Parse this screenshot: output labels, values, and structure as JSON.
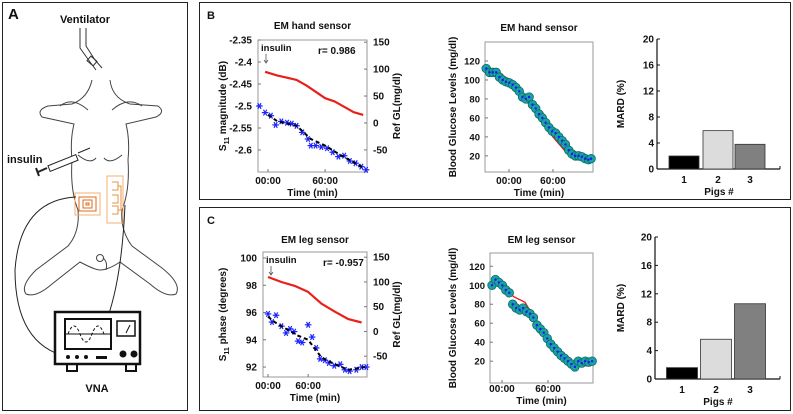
{
  "panels": {
    "a": "A",
    "b": "B",
    "c": "C"
  },
  "panel_a": {
    "ventilator": "Ventilator",
    "insulin": "insulin",
    "vna": "VNA"
  },
  "chart_data": [
    {
      "id": "b1",
      "type": "line",
      "title": "EM hand sensor",
      "xlabel": "Time (min)",
      "ylabel_parts": [
        "S",
        "11",
        " magnitude (dB)"
      ],
      "ylabel_right": "Ref GL(mg/dl)",
      "annotation": "insulin",
      "r_label": "r= 0.986",
      "xlim": [
        -10.5,
        104
      ],
      "ylim": [
        -2.65,
        -2.35
      ],
      "ylim_right": [
        -91,
        154
      ],
      "xticks": [
        {
          "v": 0,
          "label": "00:00"
        },
        {
          "v": 60,
          "label": "60:00"
        }
      ],
      "yticks": [
        "-2.35",
        "-2.4",
        "-2.45",
        "-2.5",
        "-2.55",
        "-2.6"
      ],
      "yticks_right": [
        "150",
        "100",
        "50",
        "0",
        "-50"
      ],
      "series": [
        {
          "name": "Ref GL",
          "axis": "right",
          "style": "red-line",
          "color": "#e8201a",
          "points": [
            [
              -3,
              95
            ],
            [
              10,
              88
            ],
            [
              20,
              84
            ],
            [
              30,
              80
            ],
            [
              40,
              70
            ],
            [
              50,
              58
            ],
            [
              60,
              46
            ],
            [
              70,
              40
            ],
            [
              80,
              30
            ],
            [
              90,
              20
            ],
            [
              100,
              15
            ]
          ]
        },
        {
          "name": "S11 magnitude",
          "axis": "left",
          "style": "blue-stars",
          "color": "#1a22ff",
          "points": [
            [
              -9,
              -2.5
            ],
            [
              -3,
              -2.515
            ],
            [
              3,
              -2.522
            ],
            [
              8,
              -2.543
            ],
            [
              14,
              -2.535
            ],
            [
              20,
              -2.538
            ],
            [
              25,
              -2.54
            ],
            [
              30,
              -2.545
            ],
            [
              36,
              -2.56
            ],
            [
              42,
              -2.575
            ],
            [
              45,
              -2.59
            ],
            [
              50,
              -2.59
            ],
            [
              56,
              -2.593
            ],
            [
              62,
              -2.596
            ],
            [
              68,
              -2.605
            ],
            [
              74,
              -2.615
            ],
            [
              80,
              -2.613
            ],
            [
              86,
              -2.625
            ],
            [
              92,
              -2.63
            ],
            [
              98,
              -2.638
            ],
            [
              103,
              -2.645
            ]
          ]
        },
        {
          "name": "Fit",
          "axis": "left",
          "style": "black-dash",
          "color": "#000000",
          "points": [
            [
              0,
              -2.52
            ],
            [
              10,
              -2.535
            ],
            [
              30,
              -2.545
            ],
            [
              45,
              -2.575
            ],
            [
              60,
              -2.59
            ],
            [
              75,
              -2.61
            ],
            [
              100,
              -2.64
            ]
          ]
        }
      ]
    },
    {
      "id": "b2",
      "type": "scatter",
      "title": "EM hand sensor",
      "xlabel": "Time (min)",
      "ylabel": "Blood Glucose Levels (mg/dl)",
      "xlim": [
        -32.7,
        114.6
      ],
      "ylim": [
        3,
        140
      ],
      "xticks": [
        {
          "v": 0,
          "label": "00:00"
        },
        {
          "v": 60,
          "label": "60:00"
        }
      ],
      "yticks": [
        120,
        100,
        80,
        60,
        40,
        20
      ],
      "ref_line": {
        "color": "#e8201a",
        "points": [
          [
            -25,
            108
          ],
          [
            0,
            96
          ],
          [
            20,
            82
          ],
          [
            60,
            40
          ],
          [
            80,
            22
          ],
          [
            112,
            16
          ]
        ]
      },
      "points_x": [
        -31,
        -26.5,
        -22,
        -17.5,
        -13,
        -8.5,
        -4,
        0.5,
        5,
        9.5,
        14,
        18.5,
        23,
        27.5,
        32,
        36.5,
        41,
        45.5,
        50,
        54.5,
        59,
        63.5,
        68,
        72.5,
        77,
        81.5,
        86,
        90.5,
        95,
        99.5,
        104,
        108.5,
        112
      ],
      "points_y": [
        112,
        108,
        108,
        108,
        103,
        100,
        98,
        97,
        95,
        92,
        88,
        82,
        80,
        82,
        74,
        70,
        64,
        60,
        55,
        50,
        46,
        44,
        40,
        36,
        32,
        26,
        22,
        20,
        20,
        19,
        17,
        16,
        17
      ],
      "marker_color": "#1aa3a3",
      "dot_color": "#1515ff"
    },
    {
      "id": "b3",
      "type": "bar",
      "xlabel": "Pigs #",
      "ylabel": "MARD (%)",
      "categories": [
        "1",
        "2",
        "3"
      ],
      "values": [
        2.0,
        5.9,
        3.8
      ],
      "colors": [
        "#000000",
        "#dcdcdc",
        "#808080"
      ],
      "ylim": [
        0,
        20
      ],
      "yticks": [
        0,
        4,
        8,
        12,
        16,
        20
      ]
    },
    {
      "id": "c1",
      "type": "line",
      "title": "EM leg sensor",
      "xlabel": "Time (min)",
      "ylabel_parts": [
        "S",
        "11",
        " phase (degrees)"
      ],
      "ylabel_right": "Ref GL(mg/dl)",
      "annotation": "insulin",
      "r_label": "r= -0.957",
      "xlim": [
        -7.5,
        148
      ],
      "ylim": [
        91.27,
        100.44
      ],
      "ylim_right": [
        -92,
        160.5
      ],
      "xticks": [
        {
          "v": 0,
          "label": "00:00"
        },
        {
          "v": 60,
          "label": "60:00"
        }
      ],
      "yticks": [
        "100",
        "98",
        "96",
        "94",
        "92"
      ],
      "yticks_right": [
        "150",
        "100",
        "50",
        "0",
        "-50"
      ],
      "series": [
        {
          "name": "Ref GL",
          "axis": "right",
          "style": "red-line",
          "color": "#e8201a",
          "points": [
            [
              0,
              110
            ],
            [
              20,
              100
            ],
            [
              40,
              92
            ],
            [
              60,
              80
            ],
            [
              80,
              56
            ],
            [
              100,
              40
            ],
            [
              120,
              25
            ],
            [
              140,
              18
            ]
          ]
        },
        {
          "name": "S11 phase",
          "axis": "left",
          "style": "blue-stars",
          "color": "#1a22ff",
          "points": [
            [
              0,
              95.9
            ],
            [
              6,
              95.3
            ],
            [
              12,
              95.8
            ],
            [
              20,
              95.0
            ],
            [
              27,
              94.5
            ],
            [
              33,
              94.8
            ],
            [
              39,
              94.6
            ],
            [
              45,
              93.9
            ],
            [
              51,
              93.8
            ],
            [
              60,
              95.1
            ],
            [
              66,
              94.2
            ],
            [
              72,
              93.4
            ],
            [
              78,
              92.6
            ],
            [
              85,
              92.5
            ],
            [
              91,
              92.3
            ],
            [
              99,
              92.1
            ],
            [
              108,
              92.2
            ],
            [
              115,
              91.8
            ],
            [
              122,
              91.7
            ],
            [
              132,
              91.8
            ],
            [
              140,
              92.0
            ],
            [
              147,
              92.0
            ]
          ]
        },
        {
          "name": "Fit",
          "axis": "left",
          "style": "black-dash",
          "color": "#000000",
          "points": [
            [
              0,
              95.7
            ],
            [
              10,
              95.3
            ],
            [
              20,
              95.0
            ],
            [
              45,
              94.3
            ],
            [
              60,
              94.0
            ],
            [
              80,
              92.7
            ],
            [
              100,
              92.2
            ],
            [
              120,
              91.8
            ],
            [
              145,
              92.0
            ]
          ]
        }
      ]
    },
    {
      "id": "c2",
      "type": "scatter",
      "title": "EM leg sensor",
      "xlabel": "Time (min)",
      "ylabel": "Blood Glucose Levels (mg/dl)",
      "xlim": [
        -15.6,
        118.6
      ],
      "ylim": [
        -3,
        134
      ],
      "xticks": [
        {
          "v": 0,
          "label": "00:00"
        },
        {
          "v": 60,
          "label": "60:00"
        }
      ],
      "yticks": [
        120,
        100,
        80,
        60,
        40,
        20
      ],
      "ref_line": {
        "color": "#e8201a",
        "points": [
          [
            -10,
            110
          ],
          [
            15,
            88
          ],
          [
            30,
            82
          ],
          [
            50,
            55
          ],
          [
            75,
            32
          ],
          [
            95,
            18
          ],
          [
            110,
            15
          ],
          [
            118,
            17
          ]
        ]
      },
      "points_x": [
        -13,
        -8.5,
        -4,
        0.5,
        5,
        9.5,
        14,
        18.5,
        23,
        27.5,
        32,
        36.5,
        41,
        45.5,
        50,
        54.5,
        59,
        63.5,
        68,
        72.5,
        77,
        81.5,
        86,
        90.5,
        95,
        99.5,
        104,
        108.5,
        113,
        117.5
      ],
      "points_y": [
        100,
        106,
        103,
        100,
        95,
        92,
        80,
        76,
        74,
        76,
        72,
        70,
        66,
        58,
        54,
        50,
        44,
        38,
        34,
        30,
        26,
        23,
        20,
        17,
        14,
        20,
        18,
        20,
        19,
        20
      ],
      "marker_color": "#1aa3a3",
      "dot_color": "#1515ff"
    },
    {
      "id": "c3",
      "type": "bar",
      "xlabel": "Pigs #",
      "ylabel": "MARD (%)",
      "categories": [
        "1",
        "2",
        "3"
      ],
      "values": [
        1.6,
        5.6,
        10.6
      ],
      "colors": [
        "#000000",
        "#dcdcdc",
        "#808080"
      ],
      "ylim": [
        0,
        20
      ],
      "yticks": [
        0,
        4,
        8,
        12,
        16,
        20
      ]
    }
  ]
}
